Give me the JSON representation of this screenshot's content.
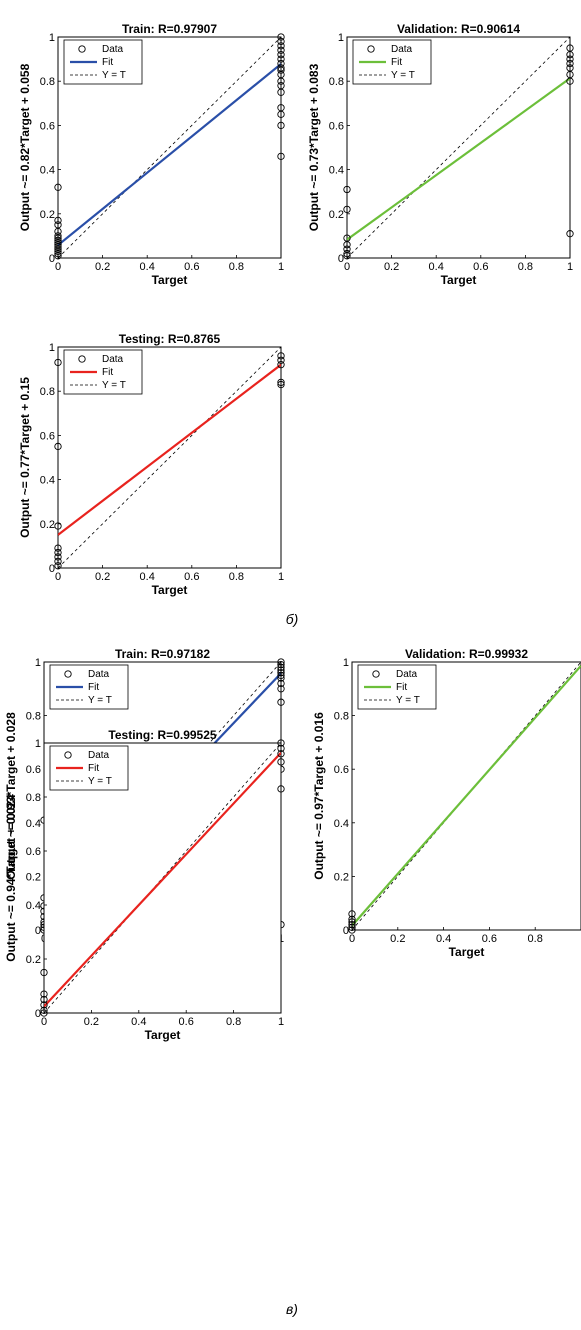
{
  "captions": [
    "б)",
    "в)"
  ],
  "legend": {
    "data": "Data",
    "fit": "Fit",
    "yt": "Y = T"
  },
  "chart_data": [
    {
      "type": "scatter",
      "title": "Train: R=0.97907",
      "xlabel": "Target",
      "ylabel": "Output ~= 0.82*Target + 0.058",
      "xlim": [
        0,
        1
      ],
      "ylim": [
        0,
        1
      ],
      "fit": {
        "slope": 0.82,
        "intercept": 0.058
      },
      "fit_color": "#2a4fa8",
      "xticks": [
        "0",
        "0.2",
        "0.4",
        "0.6",
        "0.8",
        "1"
      ],
      "yticks": [
        "0",
        "0.2",
        "0.4",
        "0.6",
        "0.8",
        "1"
      ],
      "points": [
        [
          0,
          0.01
        ],
        [
          0,
          0.02
        ],
        [
          0,
          0.03
        ],
        [
          0,
          0.04
        ],
        [
          0,
          0.05
        ],
        [
          0,
          0.06
        ],
        [
          0,
          0.07
        ],
        [
          0,
          0.08
        ],
        [
          0,
          0.09
        ],
        [
          0,
          0.1
        ],
        [
          0,
          0.12
        ],
        [
          0,
          0.15
        ],
        [
          0,
          0.17
        ],
        [
          0,
          0.32
        ],
        [
          1,
          0.46
        ],
        [
          1,
          0.6
        ],
        [
          1,
          0.65
        ],
        [
          1,
          0.68
        ],
        [
          1,
          0.75
        ],
        [
          1,
          0.78
        ],
        [
          1,
          0.8
        ],
        [
          1,
          0.83
        ],
        [
          1,
          0.85
        ],
        [
          1,
          0.86
        ],
        [
          1,
          0.88
        ],
        [
          1,
          0.9
        ],
        [
          1,
          0.92
        ],
        [
          1,
          0.94
        ],
        [
          1,
          0.96
        ],
        [
          1,
          0.98
        ],
        [
          1,
          1.0
        ]
      ]
    },
    {
      "type": "scatter",
      "title": "Validation: R=0.90614",
      "xlabel": "Target",
      "ylabel": "Output ~= 0.73*Target + 0.083",
      "xlim": [
        0,
        1
      ],
      "ylim": [
        0,
        1
      ],
      "fit": {
        "slope": 0.73,
        "intercept": 0.083
      },
      "fit_color": "#6cbf3a",
      "xticks": [
        "0",
        "0.2",
        "0.4",
        "0.6",
        "0.8",
        "1"
      ],
      "yticks": [
        "0",
        "0.2",
        "0.4",
        "0.6",
        "0.8",
        "1"
      ],
      "points": [
        [
          0,
          0.01
        ],
        [
          0,
          0.02
        ],
        [
          0,
          0.04
        ],
        [
          0,
          0.06
        ],
        [
          0,
          0.09
        ],
        [
          0,
          0.22
        ],
        [
          0,
          0.31
        ],
        [
          1,
          0.11
        ],
        [
          1,
          0.8
        ],
        [
          1,
          0.83
        ],
        [
          1,
          0.86
        ],
        [
          1,
          0.88
        ],
        [
          1,
          0.9
        ],
        [
          1,
          0.92
        ],
        [
          1,
          0.95
        ]
      ]
    },
    {
      "type": "scatter",
      "title": "Testing: R=0.8765",
      "xlabel": "Target",
      "ylabel": "Output ~= 0.77*Target + 0.15",
      "xlim": [
        0,
        1
      ],
      "ylim": [
        0,
        1
      ],
      "fit": {
        "slope": 0.77,
        "intercept": 0.15
      },
      "fit_color": "#e8231e",
      "xticks": [
        "0",
        "0.2",
        "0.4",
        "0.6",
        "0.8",
        "1"
      ],
      "yticks": [
        "0",
        "0.2",
        "0.4",
        "0.6",
        "0.8",
        "1"
      ],
      "points": [
        [
          0,
          0.01
        ],
        [
          0,
          0.03
        ],
        [
          0,
          0.05
        ],
        [
          0,
          0.07
        ],
        [
          0,
          0.09
        ],
        [
          0,
          0.19
        ],
        [
          0,
          0.55
        ],
        [
          0,
          0.93
        ],
        [
          1,
          0.83
        ],
        [
          1,
          0.84
        ],
        [
          1,
          0.92
        ],
        [
          1,
          0.94
        ],
        [
          1,
          0.96
        ]
      ]
    },
    {
      "type": "scatter",
      "title": "Train: R=0.97182",
      "xlabel": "Target",
      "ylabel": "Output ~= 0.93*Target + 0.028",
      "xlim": [
        0,
        1
      ],
      "ylim": [
        0,
        1
      ],
      "fit": {
        "slope": 0.93,
        "intercept": 0.028
      },
      "fit_color": "#2a4fa8",
      "xticks": [
        "0",
        "0.2",
        "0.4",
        "0.6",
        "0.8",
        "1"
      ],
      "yticks": [
        "0",
        "0.2",
        "0.4",
        "0.6",
        "0.8",
        "1"
      ],
      "points": [
        [
          0,
          0.0
        ],
        [
          0,
          0.01
        ],
        [
          0,
          0.02
        ],
        [
          0,
          0.03
        ],
        [
          0,
          0.05
        ],
        [
          0,
          0.07
        ],
        [
          0,
          0.09
        ],
        [
          0,
          0.12
        ],
        [
          0,
          0.41
        ],
        [
          1,
          0.02
        ],
        [
          1,
          0.6
        ],
        [
          1,
          0.85
        ],
        [
          1,
          0.9
        ],
        [
          1,
          0.92
        ],
        [
          1,
          0.94
        ],
        [
          1,
          0.95
        ],
        [
          1,
          0.96
        ],
        [
          1,
          0.97
        ],
        [
          1,
          0.98
        ],
        [
          1,
          0.99
        ],
        [
          1,
          1.0
        ]
      ]
    },
    {
      "type": "scatter",
      "title": "Validation: R=0.99932",
      "xlabel": "Target",
      "ylabel": "Output ~= 0.97*Target + 0.016",
      "xlim": [
        0,
        1
      ],
      "ylim": [
        0,
        1
      ],
      "fit": {
        "slope": 0.97,
        "intercept": 0.016
      },
      "fit_color": "#6cbf3a",
      "xticks": [
        "0",
        "0.2",
        "0.4",
        "0.6",
        "0.8"
      ],
      "yticks": [
        "0",
        "0.2",
        "0.4",
        "0.6",
        "0.8",
        "1"
      ],
      "points": [
        [
          0,
          0.0
        ],
        [
          0,
          0.01
        ],
        [
          0,
          0.02
        ],
        [
          0,
          0.03
        ],
        [
          0,
          0.04
        ],
        [
          0,
          0.06
        ]
      ]
    },
    {
      "type": "scatter",
      "title": "Testing: R=0.99525",
      "xlabel": "Target",
      "ylabel": "Output ~= 0.94*Target + 0.024",
      "xlim": [
        0,
        1
      ],
      "ylim": [
        0,
        1
      ],
      "fit": {
        "slope": 0.94,
        "intercept": 0.024
      },
      "fit_color": "#e8231e",
      "xticks": [
        "0",
        "0.2",
        "0.4",
        "0.6",
        "0.8",
        "1"
      ],
      "yticks": [
        "0",
        "0.2",
        "0.4",
        "0.6",
        "0.8",
        "1"
      ],
      "points": [
        [
          0,
          0.0
        ],
        [
          0,
          0.01
        ],
        [
          0,
          0.03
        ],
        [
          0,
          0.05
        ],
        [
          0,
          0.07
        ],
        [
          0,
          0.15
        ],
        [
          1,
          0.83
        ],
        [
          1,
          0.93
        ],
        [
          1,
          0.96
        ],
        [
          1,
          0.98
        ],
        [
          1,
          1.0
        ]
      ]
    }
  ]
}
